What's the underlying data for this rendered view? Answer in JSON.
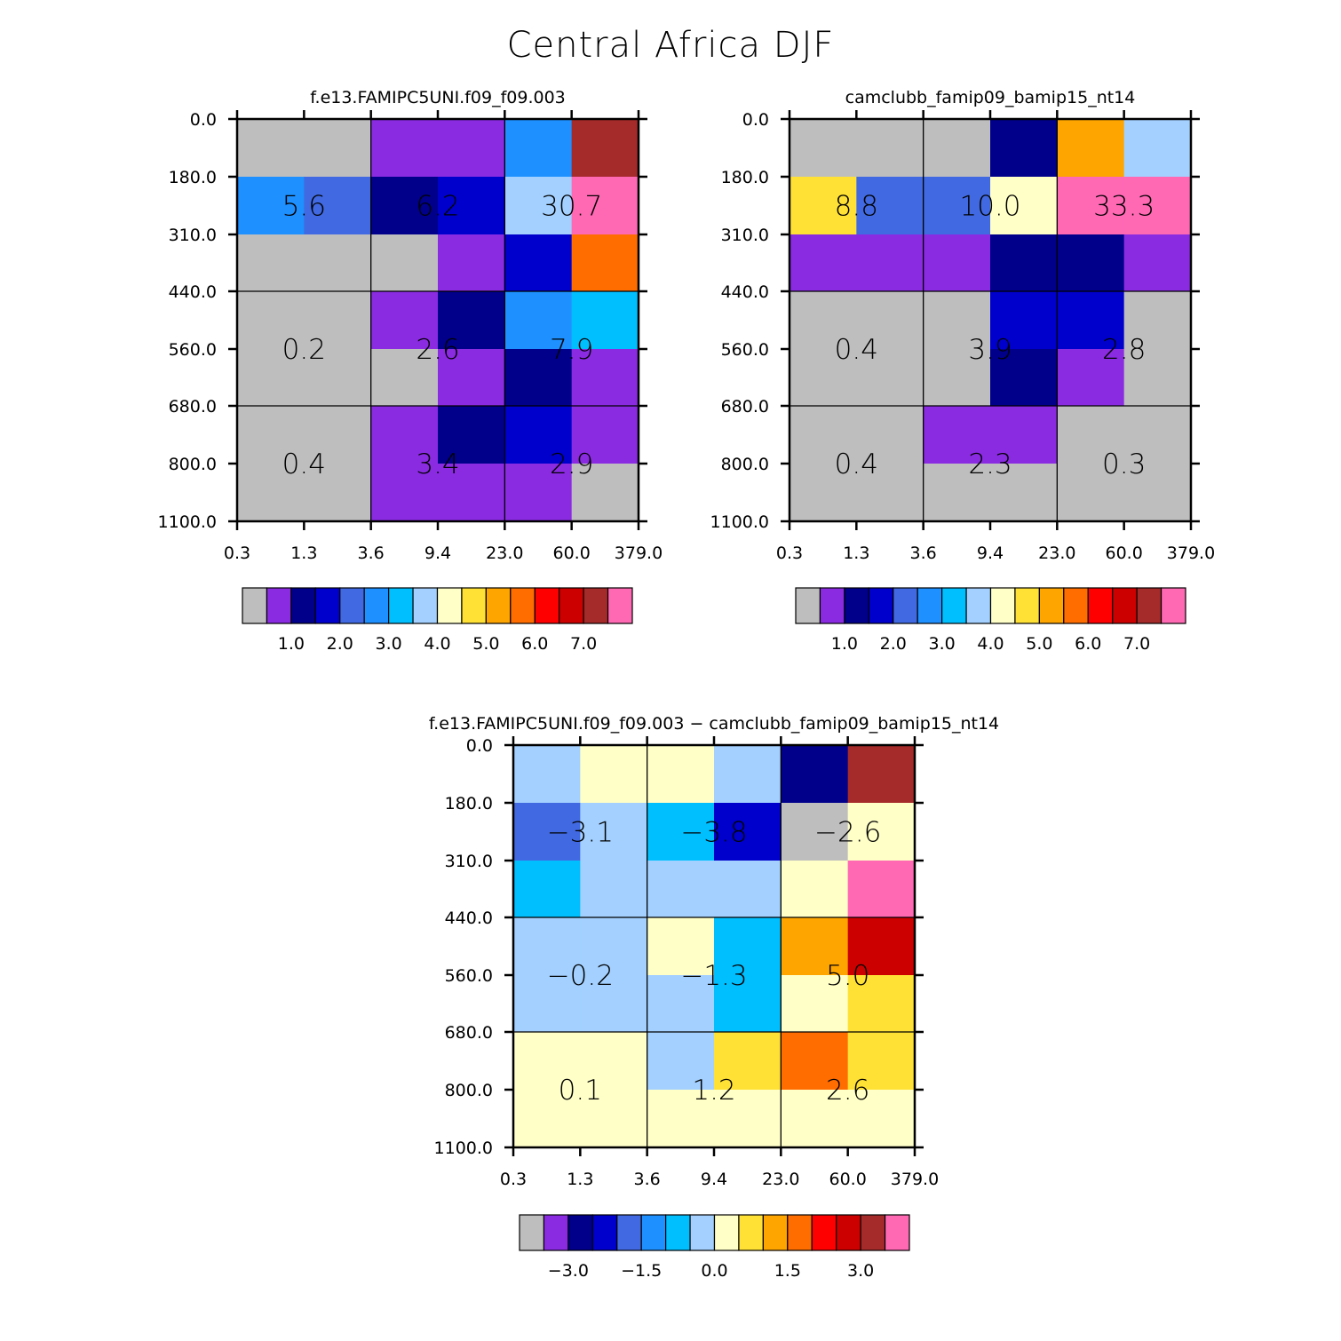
{
  "title": "Central Africa DJF",
  "chart_data": [
    {
      "type": "heatmap",
      "title": "f.e13.FAMIPC5UNI.f09_f09.003",
      "x_ticks": [
        "0.3",
        "1.3",
        "3.6",
        "9.4",
        "23.0",
        "60.0",
        "379.0"
      ],
      "y_ticks": [
        "0.0",
        "180.0",
        "310.0",
        "440.0",
        "560.0",
        "680.0",
        "800.0",
        "1100.0"
      ],
      "cells": [
        [
          "#bebebe",
          "#bebebe",
          "#8a2be2",
          "#8a2be2",
          "#1e90ff",
          "#a52a2a"
        ],
        [
          "#1e90ff",
          "#4169e1",
          "#00008b",
          "#0000cd",
          "#a3d0ff",
          "#ff69b4"
        ],
        [
          "#bebebe",
          "#bebebe",
          "#bebebe",
          "#8a2be2",
          "#0000cd",
          "#ff6d00"
        ],
        [
          "#bebebe",
          "#bebebe",
          "#8a2be2",
          "#00008b",
          "#1e90ff",
          "#00bfff"
        ],
        [
          "#bebebe",
          "#bebebe",
          "#bebebe",
          "#8a2be2",
          "#00008b",
          "#8a2be2"
        ],
        [
          "#bebebe",
          "#bebebe",
          "#8a2be2",
          "#00008b",
          "#0000cd",
          "#8a2be2"
        ],
        [
          "#bebebe",
          "#bebebe",
          "#8a2be2",
          "#8a2be2",
          "#8a2be2",
          "#bebebe"
        ]
      ],
      "group_totals": [
        [
          "5.6",
          "6.2",
          "30.7"
        ],
        [
          "0.2",
          "2.6",
          "7.9"
        ],
        [
          "0.4",
          "3.4",
          "2.9"
        ]
      ],
      "colorbar": {
        "colors": [
          "#bebebe",
          "#8a2be2",
          "#00008b",
          "#0000cd",
          "#4169e1",
          "#1e90ff",
          "#00bfff",
          "#a3d0ff",
          "#ffffc8",
          "#ffe135",
          "#ffa500",
          "#ff6d00",
          "#ff0000",
          "#cd0000",
          "#a52a2a",
          "#ff69b4"
        ],
        "labels": [
          {
            "boundary": 2,
            "text": "1.0"
          },
          {
            "boundary": 4,
            "text": "2.0"
          },
          {
            "boundary": 6,
            "text": "3.0"
          },
          {
            "boundary": 8,
            "text": "4.0"
          },
          {
            "boundary": 10,
            "text": "5.0"
          },
          {
            "boundary": 12,
            "text": "6.0"
          },
          {
            "boundary": 14,
            "text": "7.0"
          }
        ]
      }
    },
    {
      "type": "heatmap",
      "title": "camclubb_famip09_bamip15_nt14",
      "x_ticks": [
        "0.3",
        "1.3",
        "3.6",
        "9.4",
        "23.0",
        "60.0",
        "379.0"
      ],
      "y_ticks": [
        "0.0",
        "180.0",
        "310.0",
        "440.0",
        "560.0",
        "680.0",
        "800.0",
        "1100.0"
      ],
      "cells": [
        [
          "#bebebe",
          "#bebebe",
          "#bebebe",
          "#00008b",
          "#ffa500",
          "#a3d0ff"
        ],
        [
          "#ffe135",
          "#4169e1",
          "#4169e1",
          "#ffffc8",
          "#ff69b4",
          "#ff69b4"
        ],
        [
          "#8a2be2",
          "#8a2be2",
          "#8a2be2",
          "#00008b",
          "#00008b",
          "#8a2be2"
        ],
        [
          "#bebebe",
          "#bebebe",
          "#bebebe",
          "#0000cd",
          "#0000cd",
          "#bebebe"
        ],
        [
          "#bebebe",
          "#bebebe",
          "#bebebe",
          "#00008b",
          "#8a2be2",
          "#bebebe"
        ],
        [
          "#bebebe",
          "#bebebe",
          "#8a2be2",
          "#8a2be2",
          "#bebebe",
          "#bebebe"
        ],
        [
          "#bebebe",
          "#bebebe",
          "#bebebe",
          "#bebebe",
          "#bebebe",
          "#bebebe"
        ]
      ],
      "group_totals": [
        [
          "8.8",
          "10.0",
          "33.3"
        ],
        [
          "0.4",
          "3.9",
          "2.8"
        ],
        [
          "0.4",
          "2.3",
          "0.3"
        ]
      ],
      "colorbar": {
        "colors": [
          "#bebebe",
          "#8a2be2",
          "#00008b",
          "#0000cd",
          "#4169e1",
          "#1e90ff",
          "#00bfff",
          "#a3d0ff",
          "#ffffc8",
          "#ffe135",
          "#ffa500",
          "#ff6d00",
          "#ff0000",
          "#cd0000",
          "#a52a2a",
          "#ff69b4"
        ],
        "labels": [
          {
            "boundary": 2,
            "text": "1.0"
          },
          {
            "boundary": 4,
            "text": "2.0"
          },
          {
            "boundary": 6,
            "text": "3.0"
          },
          {
            "boundary": 8,
            "text": "4.0"
          },
          {
            "boundary": 10,
            "text": "5.0"
          },
          {
            "boundary": 12,
            "text": "6.0"
          },
          {
            "boundary": 14,
            "text": "7.0"
          }
        ]
      }
    },
    {
      "type": "heatmap",
      "title": "f.e13.FAMIPC5UNI.f09_f09.003 − camclubb_famip09_bamip15_nt14",
      "x_ticks": [
        "0.3",
        "1.3",
        "3.6",
        "9.4",
        "23.0",
        "60.0",
        "379.0"
      ],
      "y_ticks": [
        "0.0",
        "180.0",
        "310.0",
        "440.0",
        "560.0",
        "680.0",
        "800.0",
        "1100.0"
      ],
      "cells": [
        [
          "#a3d0ff",
          "#ffffc8",
          "#ffffc8",
          "#a3d0ff",
          "#00008b",
          "#a52a2a"
        ],
        [
          "#4169e1",
          "#a3d0ff",
          "#00bfff",
          "#0000cd",
          "#bebebe",
          "#ffffc8"
        ],
        [
          "#00bfff",
          "#a3d0ff",
          "#a3d0ff",
          "#a3d0ff",
          "#ffffc8",
          "#ff69b4"
        ],
        [
          "#a3d0ff",
          "#a3d0ff",
          "#ffffc8",
          "#00bfff",
          "#ffa500",
          "#cd0000"
        ],
        [
          "#a3d0ff",
          "#a3d0ff",
          "#a3d0ff",
          "#00bfff",
          "#ffffc8",
          "#ffe135"
        ],
        [
          "#ffffc8",
          "#ffffc8",
          "#a3d0ff",
          "#ffe135",
          "#ff6d00",
          "#ffe135"
        ],
        [
          "#ffffc8",
          "#ffffc8",
          "#ffffc8",
          "#ffffc8",
          "#ffffc8",
          "#ffffc8"
        ]
      ],
      "group_totals": [
        [
          "−3.1",
          "−3.8",
          "−2.6"
        ],
        [
          "−0.2",
          "−1.3",
          "5.0"
        ],
        [
          "0.1",
          "1.2",
          "2.6"
        ]
      ],
      "colorbar": {
        "colors": [
          "#bebebe",
          "#8a2be2",
          "#00008b",
          "#0000cd",
          "#4169e1",
          "#1e90ff",
          "#00bfff",
          "#a3d0ff",
          "#ffffc8",
          "#ffe135",
          "#ffa500",
          "#ff6d00",
          "#ff0000",
          "#cd0000",
          "#a52a2a",
          "#ff69b4"
        ],
        "labels": [
          {
            "boundary": 2,
            "text": "−3.0"
          },
          {
            "boundary": 5,
            "text": "−1.5"
          },
          {
            "boundary": 8,
            "text": "0.0"
          },
          {
            "boundary": 11,
            "text": "1.5"
          },
          {
            "boundary": 14,
            "text": "3.0"
          }
        ]
      }
    }
  ]
}
